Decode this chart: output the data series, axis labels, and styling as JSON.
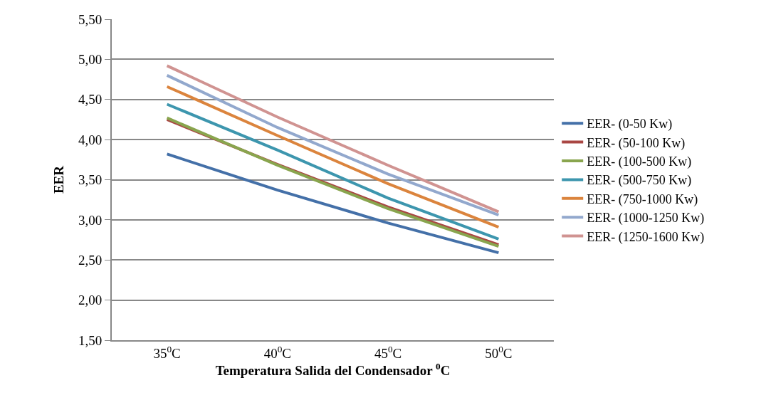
{
  "chart_data": {
    "type": "line",
    "categories": [
      "35$^{0}$C",
      "40$^{0}$C",
      "45$^{0}$C",
      "50$^{0}$C"
    ],
    "xlabel": "Temperatura Salida del Condensador $^{0}$C",
    "ylabel": "EER",
    "ylim": [
      1.5,
      5.5
    ],
    "yticks": [
      {
        "value": 1.5,
        "label": "1,50"
      },
      {
        "value": 2.0,
        "label": "2,00"
      },
      {
        "value": 2.5,
        "label": "2,50"
      },
      {
        "value": 3.0,
        "label": "3,00"
      },
      {
        "value": 3.5,
        "label": "3,50"
      },
      {
        "value": 4.0,
        "label": "4,00"
      },
      {
        "value": 4.5,
        "label": "4,50"
      },
      {
        "value": 5.0,
        "label": "5,00"
      },
      {
        "value": 5.5,
        "label": "5,50"
      }
    ],
    "grid": "y",
    "legend": "right",
    "marker": "none",
    "line_style": "solid",
    "series": [
      {
        "name": "EER- (0-50 Kw)",
        "color": "#4470a8",
        "values": [
          3.82,
          3.37,
          2.96,
          2.59
        ]
      },
      {
        "name": "EER- (50-100 Kw)",
        "color": "#a94643",
        "values": [
          4.25,
          3.69,
          3.16,
          2.69
        ]
      },
      {
        "name": "EER- (100-500 Kw)",
        "color": "#89a54e",
        "values": [
          4.27,
          3.68,
          3.14,
          2.67
        ]
      },
      {
        "name": "EER- (500-750 Kw)",
        "color": "#3d96ae",
        "values": [
          4.44,
          3.87,
          3.27,
          2.76
        ]
      },
      {
        "name": "EER- (750-1000 Kw)",
        "color": "#db843d",
        "values": [
          4.66,
          4.05,
          3.45,
          2.91
        ]
      },
      {
        "name": "EER- (1000-1250 Kw)",
        "color": "#92a8cd",
        "values": [
          4.8,
          4.15,
          3.57,
          3.06
        ]
      },
      {
        "name": "EER- (1250-1600 Kw)",
        "color": "#d09391",
        "values": [
          4.92,
          4.28,
          3.68,
          3.1
        ]
      }
    ]
  }
}
